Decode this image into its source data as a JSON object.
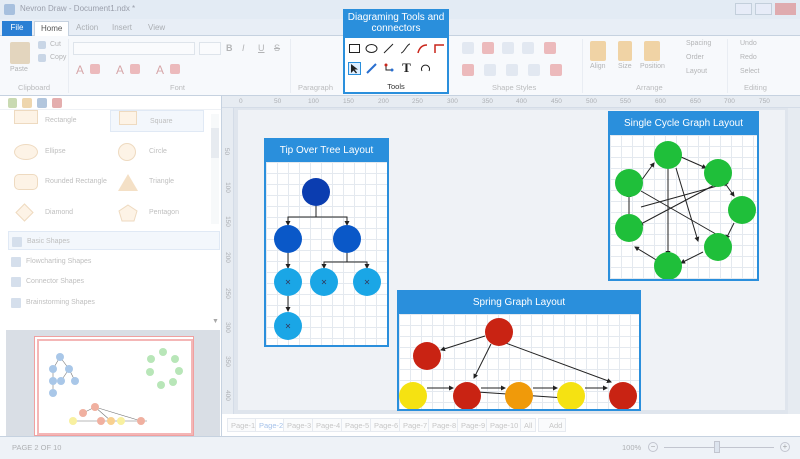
{
  "app": {
    "title": "Nevron Draw - Document1.ndx *"
  },
  "tabs": [
    "File",
    "Home",
    "Action",
    "Insert",
    "View"
  ],
  "ribbon": {
    "clipboard": {
      "label": "Clipboard",
      "paste": "Paste",
      "cut": "Cut",
      "copy": "Copy"
    },
    "font": {
      "label": "Font"
    },
    "paragraph": {
      "label": "Paragraph"
    },
    "tools": {
      "label": "Tools"
    },
    "shape_styles": {
      "label": "Shape Styles"
    },
    "arrange": {
      "label": "Arrange",
      "align": "Align",
      "size": "Size",
      "position": "Position",
      "spacing": "Spacing",
      "order": "Order",
      "layout": "Layout"
    },
    "editing": {
      "label": "Editing",
      "undo": "Undo",
      "redo": "Redo",
      "select": "Select"
    }
  },
  "callout": {
    "title": "Diagraming Tools and connectors"
  },
  "library": {
    "shapes": [
      "Rectangle",
      "Square",
      "Ellipse",
      "Circle",
      "Rounded Rectangle",
      "Triangle",
      "Diamond",
      "Pentagon"
    ],
    "categories": [
      "Basic Shapes",
      "Flowcharting Shapes",
      "Connector Shapes",
      "Brainstorming Shapes"
    ]
  },
  "diagram": {
    "tree_title": "Tip Over Tree Layout",
    "cycle_title": "Single Cycle Graph Layout",
    "spring_title": "Spring Graph Layout"
  },
  "ruler": {
    "top": [
      "0",
      "50",
      "100",
      "150",
      "200",
      "250",
      "300",
      "350",
      "400",
      "450",
      "500",
      "550",
      "600",
      "650",
      "700",
      "750"
    ],
    "left": [
      "50",
      "100",
      "150",
      "200",
      "250",
      "300",
      "350",
      "400"
    ]
  },
  "pages": [
    "Page-1",
    "Page-2",
    "Page-3",
    "Page-4",
    "Page-5",
    "Page-6",
    "Page-7",
    "Page-8",
    "Page-9",
    "Page-10",
    "All",
    "Add"
  ],
  "active_page": "Page-2",
  "status": {
    "page": "PAGE 2 OF 10",
    "zoom": "100%",
    "zoom_level": 1.0
  },
  "colors": {
    "accent": "#2a8fdc",
    "tree_dark": "#0b3db0",
    "tree_mid": "#0a58c8",
    "tree_light": "#1aa6e6",
    "cycle": "#1fbf3a",
    "spring_red": "#c92313",
    "spring_orange": "#f09a0a",
    "spring_yellow": "#f5e212"
  }
}
